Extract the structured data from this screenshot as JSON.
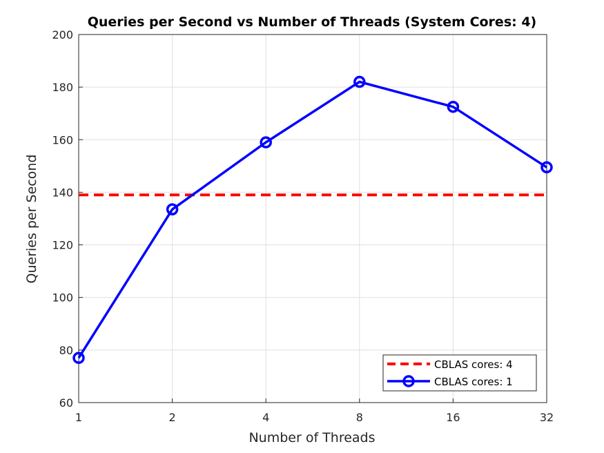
{
  "chart_data": {
    "type": "line",
    "title": "Queries per Second vs Number of Threads (System Cores: 4)",
    "xlabel": "Number of Threads",
    "ylabel": "Queries per Second",
    "x_scale": "log2",
    "x": [
      1,
      2,
      4,
      8,
      16,
      32
    ],
    "xtick_labels": [
      "1",
      "2",
      "4",
      "8",
      "16",
      "32"
    ],
    "ylim": [
      60,
      200
    ],
    "yticks": [
      60,
      80,
      100,
      120,
      140,
      160,
      180,
      200
    ],
    "grid": true,
    "legend_position": "bottom-right",
    "series": [
      {
        "name": "CBLAS cores: 4",
        "style": "dashed",
        "marker": "none",
        "color": "#ff0000",
        "values": [
          139,
          139,
          139,
          139,
          139,
          139
        ]
      },
      {
        "name": "CBLAS cores: 1",
        "style": "solid",
        "marker": "circle",
        "color": "#0000ff",
        "values": [
          77,
          133.5,
          159,
          182,
          172.5,
          149.5
        ]
      }
    ]
  }
}
